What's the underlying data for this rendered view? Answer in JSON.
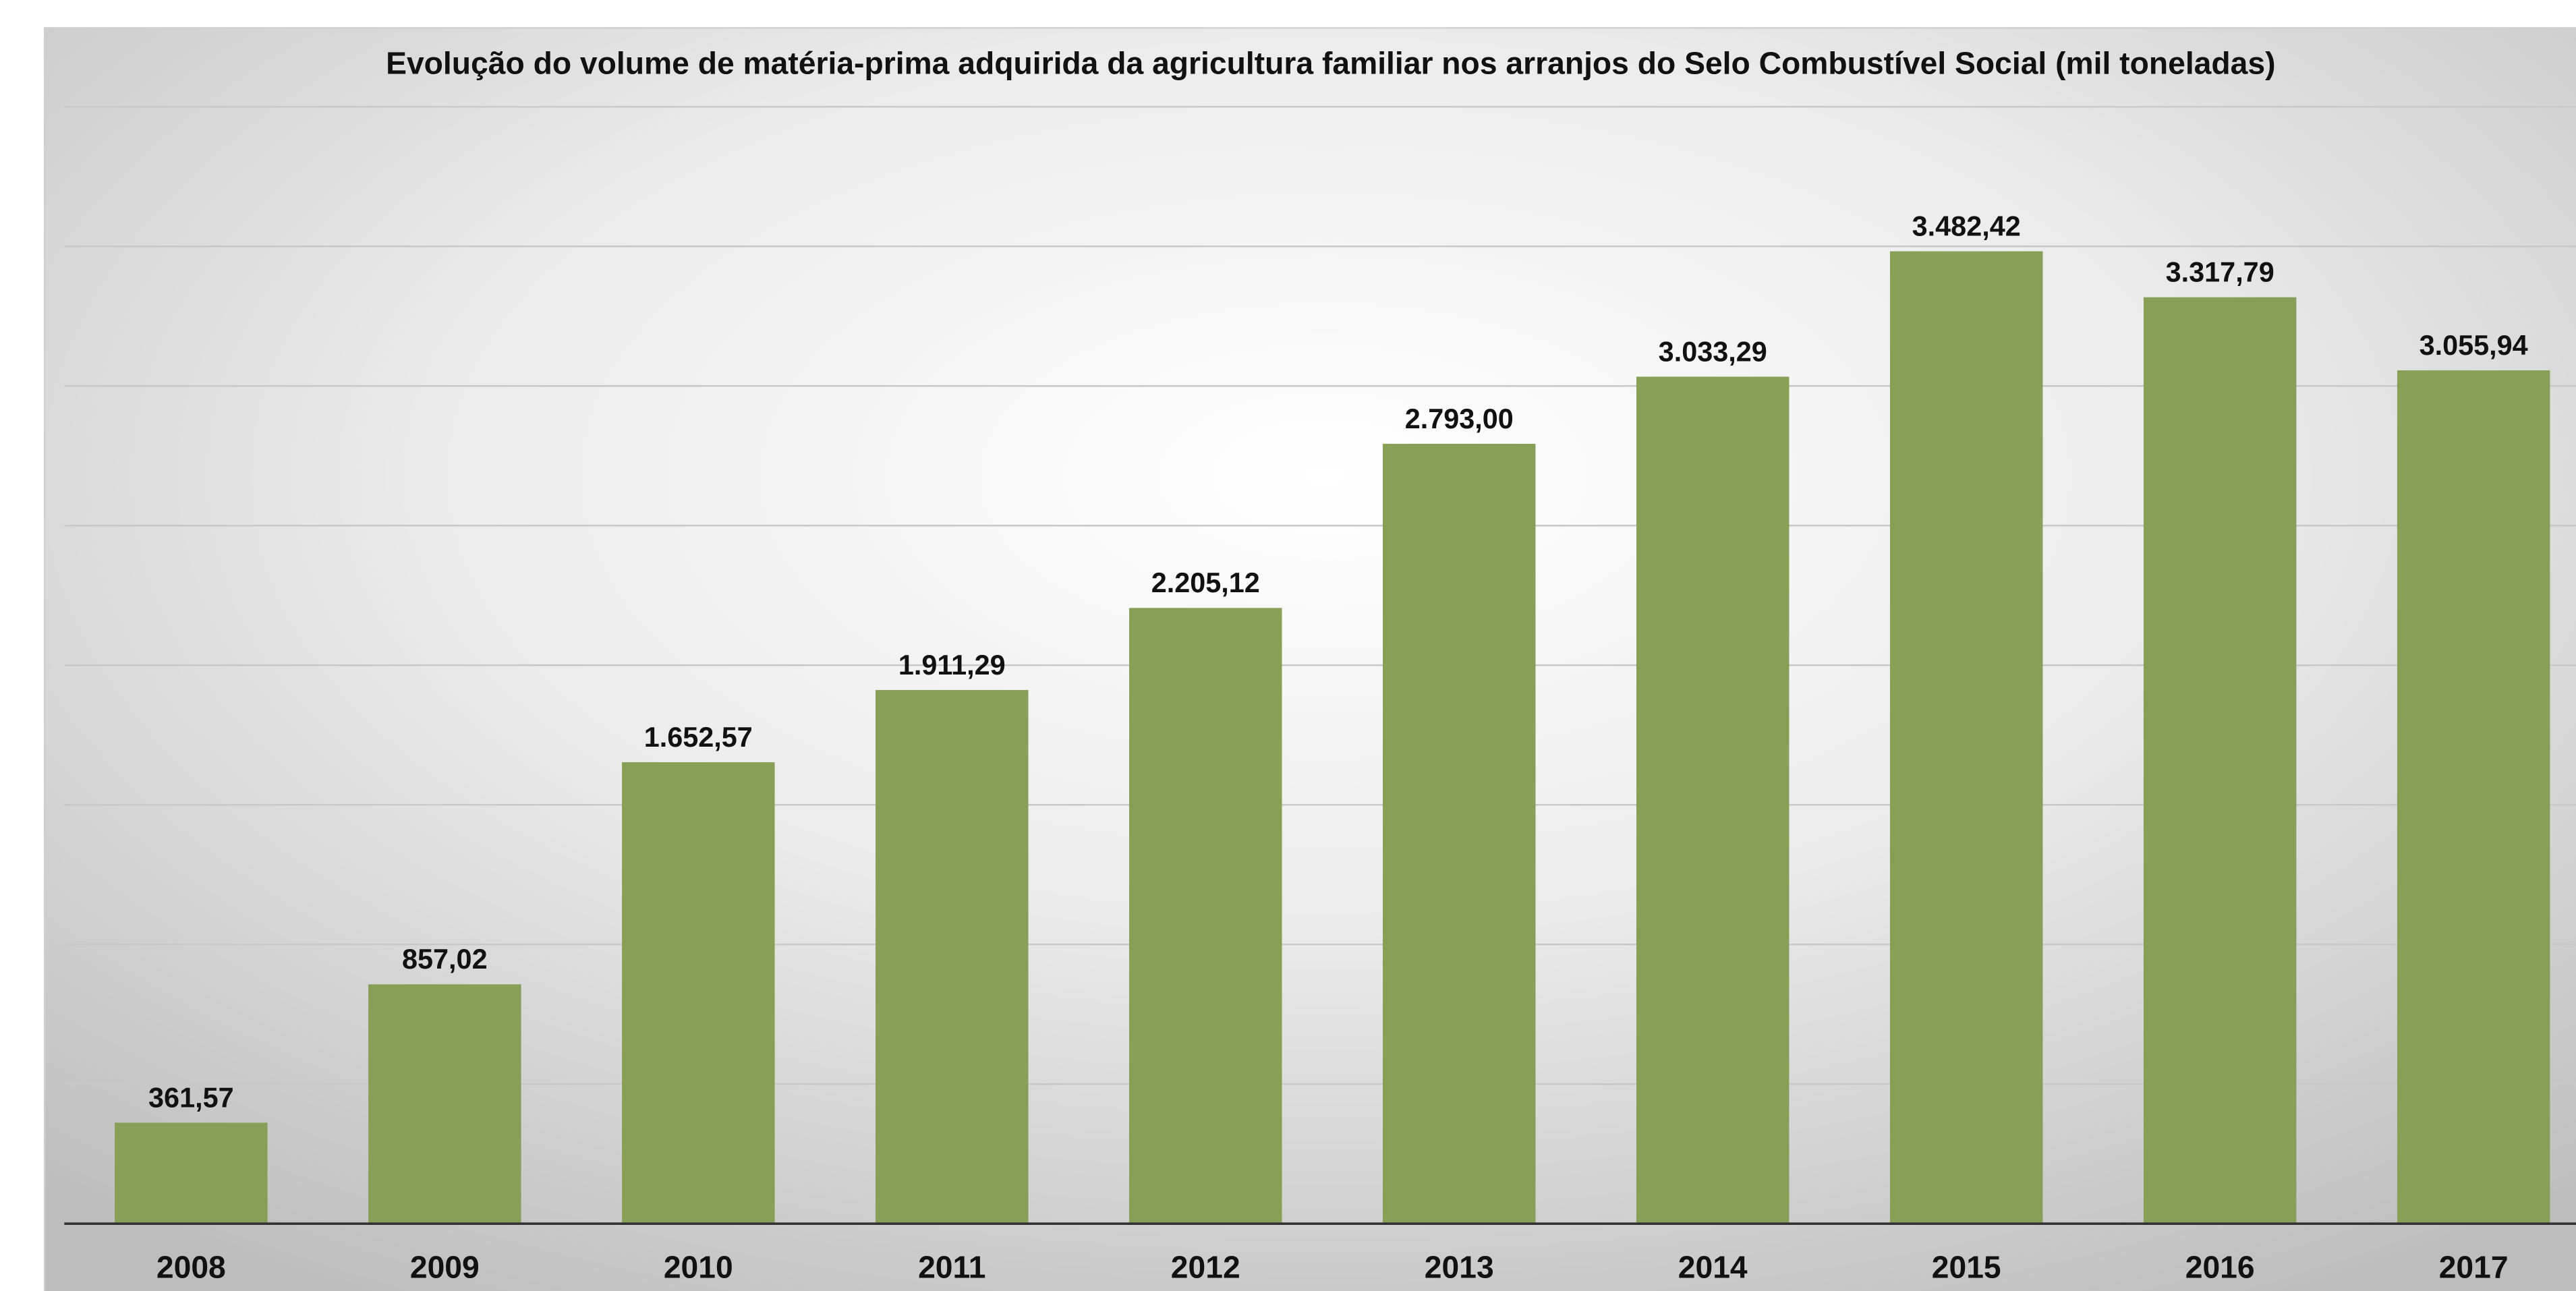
{
  "chart_data": {
    "type": "bar",
    "title": "Evolução do volume de matéria-prima adquirida da agricultura familiar nos arranjos do Selo Combustível Social (mil toneladas)",
    "categories": [
      "2008",
      "2009",
      "2010",
      "2011",
      "2012",
      "2013",
      "2014",
      "2015",
      "2016",
      "2017"
    ],
    "values": [
      361.57,
      857.02,
      1652.57,
      1911.29,
      2205.12,
      2793.0,
      3033.29,
      3482.42,
      3317.79,
      3055.94
    ],
    "value_labels": [
      "361,57",
      "857,02",
      "1.652,57",
      "1.911,29",
      "2.205,12",
      "2.793,00",
      "3.033,29",
      "3.482,42",
      "3.317,79",
      "3.055,94"
    ],
    "color": "#86a057",
    "ylim": [
      0,
      4000
    ],
    "yticks": [
      0,
      500,
      1000,
      1500,
      2000,
      2500,
      3000,
      3500,
      4000
    ],
    "grid": true
  }
}
